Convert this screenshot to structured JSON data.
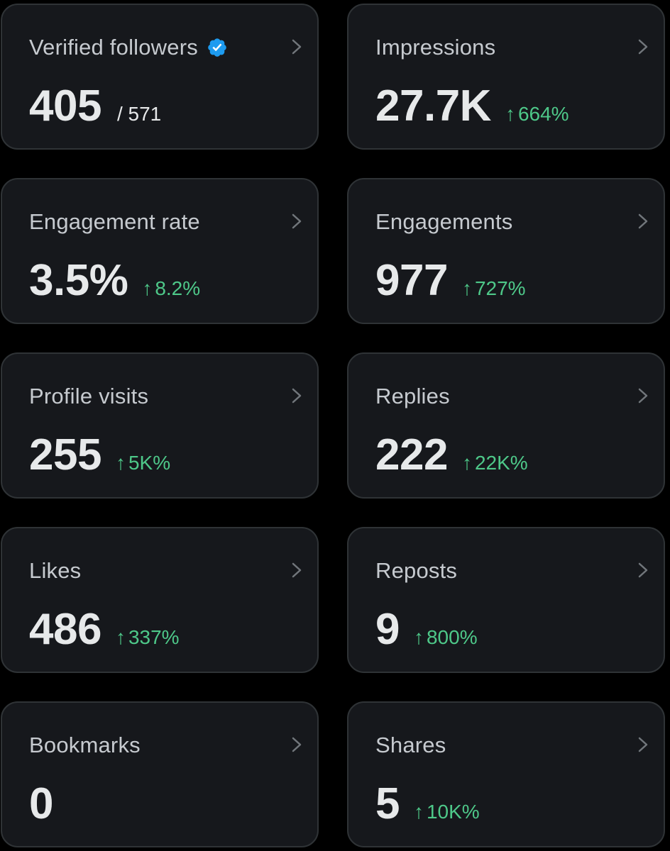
{
  "colors": {
    "background": "#000000",
    "card_background": "#16181c",
    "card_border": "#2f3336",
    "title_text": "#c6cacf",
    "value_text": "#e7e9ea",
    "positive_change": "#4ec889",
    "verified_badge": "#1d9bf0"
  },
  "icons": {
    "verified": "verified-badge-icon",
    "chevron": "chevron-right-icon",
    "trend_up": "arrow-up-icon"
  },
  "change_arrow": "↑",
  "cards": [
    {
      "title": "Verified followers",
      "value": "405",
      "sub_total": "/ 571",
      "verified": true
    },
    {
      "title": "Impressions",
      "value": "27.7K",
      "change": "664%"
    },
    {
      "title": "Engagement rate",
      "value": "3.5%",
      "change": "8.2%"
    },
    {
      "title": "Engagements",
      "value": "977",
      "change": "727%"
    },
    {
      "title": "Profile visits",
      "value": "255",
      "change": "5K%"
    },
    {
      "title": "Replies",
      "value": "222",
      "change": "22K%"
    },
    {
      "title": "Likes",
      "value": "486",
      "change": "337%"
    },
    {
      "title": "Reposts",
      "value": "9",
      "change": "800%"
    },
    {
      "title": "Bookmarks",
      "value": "0"
    },
    {
      "title": "Shares",
      "value": "5",
      "change": "10K%"
    }
  ]
}
